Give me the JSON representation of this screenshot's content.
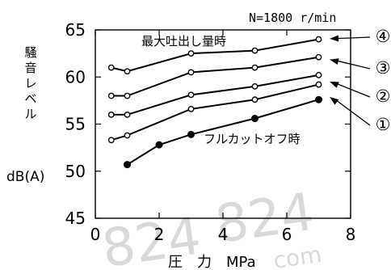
{
  "chart_data": {
    "type": "line",
    "condition_note": "N=1800 r/min",
    "ylabel": "騒音レベル",
    "yunit": "dB(A)",
    "xlabel": "圧　力　MPa",
    "xlim": [
      0,
      8
    ],
    "ylim": [
      45,
      65
    ],
    "xticks": [
      "0",
      "2",
      "4",
      "6",
      "8"
    ],
    "yticks": [
      "45",
      "50",
      "55",
      "60",
      "65"
    ],
    "grid": false,
    "series": [
      {
        "label": "④",
        "annotation": "最大吐出し量時",
        "marker": "open",
        "x": [
          0.5,
          1.0,
          3.0,
          5.0,
          7.0
        ],
        "y": [
          61.0,
          60.6,
          62.5,
          62.8,
          64.0
        ]
      },
      {
        "label": "③",
        "annotation": "",
        "marker": "open",
        "x": [
          0.5,
          1.0,
          3.0,
          5.0,
          7.0
        ],
        "y": [
          58.0,
          58.0,
          60.5,
          61.0,
          62.1
        ]
      },
      {
        "label": "②",
        "annotation": "",
        "marker": "open",
        "x": [
          0.5,
          1.0,
          3.0,
          5.0,
          7.0
        ],
        "y": [
          56.0,
          56.0,
          58.1,
          59.0,
          60.2
        ]
      },
      {
        "label": "①",
        "annotation": "",
        "marker": "open",
        "x": [
          0.5,
          1.0,
          3.0,
          5.0,
          7.0
        ],
        "y": [
          53.3,
          53.8,
          56.6,
          57.6,
          59.2
        ]
      },
      {
        "label": "",
        "annotation": "フルカットオフ時",
        "marker": "filled",
        "x": [
          1.0,
          2.0,
          3.0,
          5.0,
          7.0
        ],
        "y": [
          50.7,
          52.8,
          53.9,
          55.6,
          57.6
        ]
      }
    ]
  },
  "watermark": [
    "824",
    "824",
    "com"
  ]
}
